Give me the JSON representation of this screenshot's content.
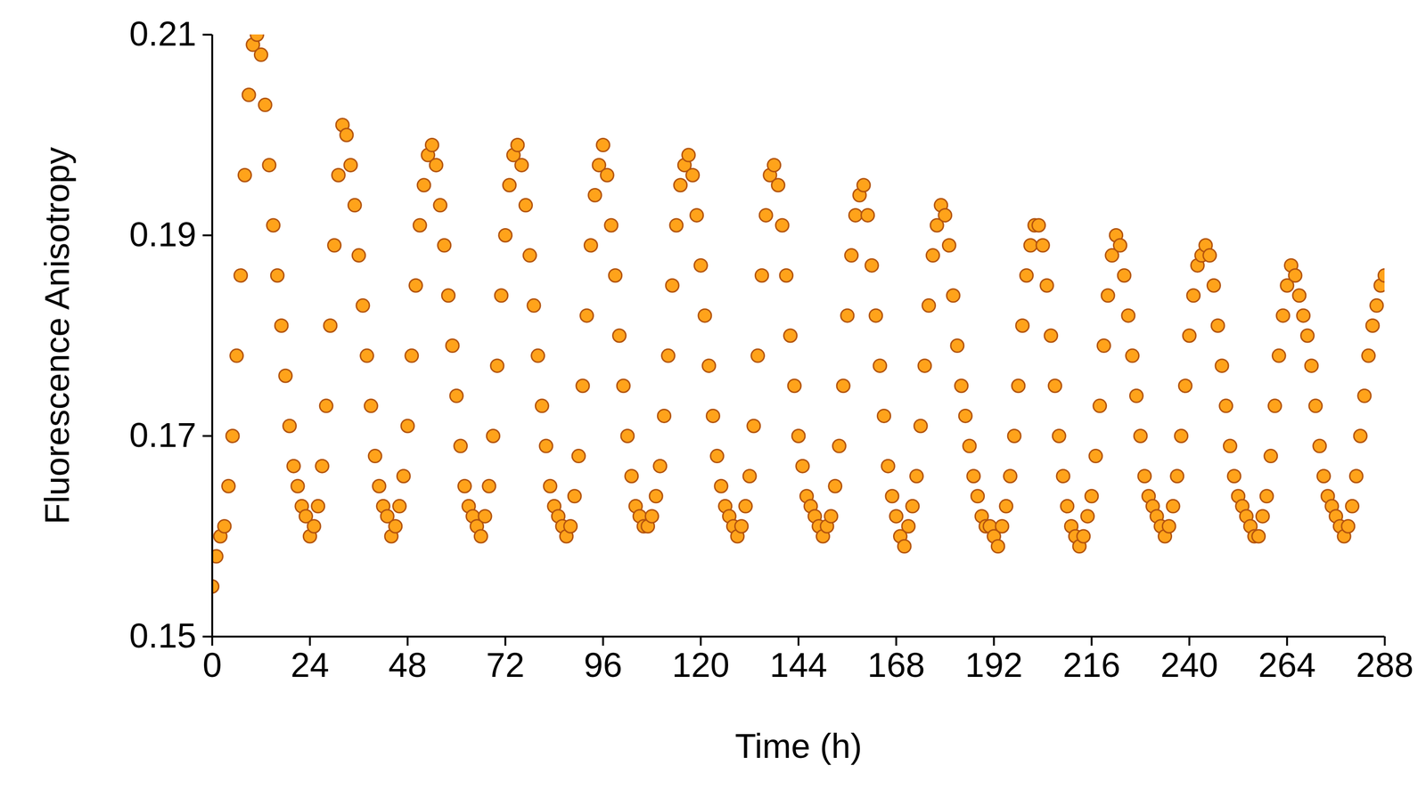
{
  "chart_data": {
    "type": "scatter",
    "x_label": "Time (h)",
    "y_label": "Fluorescence Anisotropy",
    "xlim": [
      0,
      288
    ],
    "xticks": [
      0,
      24,
      48,
      72,
      96,
      120,
      144,
      168,
      192,
      216,
      240,
      264,
      288
    ],
    "ylim": [
      0.15,
      0.21
    ],
    "yticks": [
      0.15,
      0.17,
      0.19,
      0.21
    ],
    "grid": false,
    "marker": "circle",
    "color": "#ffa31a",
    "x": [
      0,
      1,
      2,
      3,
      4,
      5,
      6,
      7,
      8,
      9,
      10,
      11,
      12,
      13,
      14,
      15,
      16,
      17,
      18,
      19,
      20,
      21,
      22,
      23,
      24,
      25,
      26,
      27,
      28,
      29,
      30,
      31,
      32,
      33,
      34,
      35,
      36,
      37,
      38,
      39,
      40,
      41,
      42,
      43,
      44,
      45,
      46,
      47,
      48,
      49,
      50,
      51,
      52,
      53,
      54,
      55,
      56,
      57,
      58,
      59,
      60,
      61,
      62,
      63,
      64,
      65,
      66,
      67,
      68,
      69,
      70,
      71,
      72,
      73,
      74,
      75,
      76,
      77,
      78,
      79,
      80,
      81,
      82,
      83,
      84,
      85,
      86,
      87,
      88,
      89,
      90,
      91,
      92,
      93,
      94,
      95,
      96,
      97,
      98,
      99,
      100,
      101,
      102,
      103,
      104,
      105,
      106,
      107,
      108,
      109,
      110,
      111,
      112,
      113,
      114,
      115,
      116,
      117,
      118,
      119,
      120,
      121,
      122,
      123,
      124,
      125,
      126,
      127,
      128,
      129,
      130,
      131,
      132,
      133,
      134,
      135,
      136,
      137,
      138,
      139,
      140,
      141,
      142,
      143,
      144,
      145,
      146,
      147,
      148,
      149,
      150,
      151,
      152,
      153,
      154,
      155,
      156,
      157,
      158,
      159,
      160,
      161,
      162,
      163,
      164,
      165,
      166,
      167,
      168,
      169,
      170,
      171,
      172,
      173,
      174,
      175,
      176,
      177,
      178,
      179,
      180,
      181,
      182,
      183,
      184,
      185,
      186,
      187,
      188,
      189,
      190,
      191,
      192,
      193,
      194,
      195,
      196,
      197,
      198,
      199,
      200,
      201,
      202,
      203,
      204,
      205,
      206,
      207,
      208,
      209,
      210,
      211,
      212,
      213,
      214,
      215,
      216,
      217,
      218,
      219,
      220,
      221,
      222,
      223,
      224,
      225,
      226,
      227,
      228,
      229,
      230,
      231,
      232,
      233,
      234,
      235,
      236,
      237,
      238,
      239,
      240,
      241,
      242,
      243,
      244,
      245,
      246,
      247,
      248,
      249,
      250,
      251,
      252,
      253,
      254,
      255,
      256,
      257,
      258,
      259,
      260,
      261,
      262,
      263,
      264,
      265,
      266,
      267,
      268,
      269,
      270,
      271,
      272,
      273,
      274,
      275,
      276,
      277,
      278,
      279,
      280,
      281,
      282,
      283,
      284,
      285,
      286,
      287,
      288
    ],
    "values": [
      0.155,
      0.158,
      0.16,
      0.161,
      0.165,
      0.17,
      0.178,
      0.186,
      0.196,
      0.204,
      0.209,
      0.21,
      0.208,
      0.203,
      0.197,
      0.191,
      0.186,
      0.181,
      0.176,
      0.171,
      0.167,
      0.165,
      0.163,
      0.162,
      0.16,
      0.161,
      0.163,
      0.167,
      0.173,
      0.181,
      0.189,
      0.196,
      0.201,
      0.2,
      0.197,
      0.193,
      0.188,
      0.183,
      0.178,
      0.173,
      0.168,
      0.165,
      0.163,
      0.162,
      0.16,
      0.161,
      0.163,
      0.166,
      0.171,
      0.178,
      0.185,
      0.191,
      0.195,
      0.198,
      0.199,
      0.197,
      0.193,
      0.189,
      0.184,
      0.179,
      0.174,
      0.169,
      0.165,
      0.163,
      0.162,
      0.161,
      0.16,
      0.162,
      0.165,
      0.17,
      0.177,
      0.184,
      0.19,
      0.195,
      0.198,
      0.199,
      0.197,
      0.193,
      0.188,
      0.183,
      0.178,
      0.173,
      0.169,
      0.165,
      0.163,
      0.162,
      0.161,
      0.16,
      0.161,
      0.164,
      0.168,
      0.175,
      0.182,
      0.189,
      0.194,
      0.197,
      0.199,
      0.196,
      0.191,
      0.186,
      0.18,
      0.175,
      0.17,
      0.166,
      0.163,
      0.162,
      0.161,
      0.161,
      0.162,
      0.164,
      0.167,
      0.172,
      0.178,
      0.185,
      0.191,
      0.195,
      0.197,
      0.198,
      0.196,
      0.192,
      0.187,
      0.182,
      0.177,
      0.172,
      0.168,
      0.165,
      0.163,
      0.162,
      0.161,
      0.16,
      0.161,
      0.163,
      0.166,
      0.171,
      0.178,
      0.186,
      0.192,
      0.196,
      0.197,
      0.195,
      0.191,
      0.186,
      0.18,
      0.175,
      0.17,
      0.167,
      0.164,
      0.163,
      0.162,
      0.161,
      0.16,
      0.161,
      0.162,
      0.165,
      0.169,
      0.175,
      0.182,
      0.188,
      0.192,
      0.194,
      0.195,
      0.192,
      0.187,
      0.182,
      0.177,
      0.172,
      0.167,
      0.164,
      0.162,
      0.16,
      0.159,
      0.161,
      0.163,
      0.166,
      0.171,
      0.177,
      0.183,
      0.188,
      0.191,
      0.193,
      0.192,
      0.189,
      0.184,
      0.179,
      0.175,
      0.172,
      0.169,
      0.166,
      0.164,
      0.162,
      0.161,
      0.161,
      0.16,
      0.159,
      0.161,
      0.163,
      0.166,
      0.17,
      0.175,
      0.181,
      0.186,
      0.189,
      0.191,
      0.191,
      0.189,
      0.185,
      0.18,
      0.175,
      0.17,
      0.166,
      0.163,
      0.161,
      0.16,
      0.159,
      0.16,
      0.162,
      0.164,
      0.168,
      0.173,
      0.179,
      0.184,
      0.188,
      0.19,
      0.189,
      0.186,
      0.182,
      0.178,
      0.174,
      0.17,
      0.166,
      0.164,
      0.163,
      0.162,
      0.161,
      0.16,
      0.161,
      0.163,
      0.166,
      0.17,
      0.175,
      0.18,
      0.184,
      0.187,
      0.188,
      0.189,
      0.188,
      0.185,
      0.181,
      0.177,
      0.173,
      0.169,
      0.166,
      0.164,
      0.163,
      0.162,
      0.161,
      0.16,
      0.16,
      0.162,
      0.164,
      0.168,
      0.173,
      0.178,
      0.182,
      0.185,
      0.187,
      0.186,
      0.184,
      0.182,
      0.18,
      0.177,
      0.173,
      0.169,
      0.166,
      0.164,
      0.163,
      0.162,
      0.161,
      0.16,
      0.161,
      0.163,
      0.166,
      0.17,
      0.174,
      0.178,
      0.181,
      0.183,
      0.185,
      0.186
    ]
  }
}
